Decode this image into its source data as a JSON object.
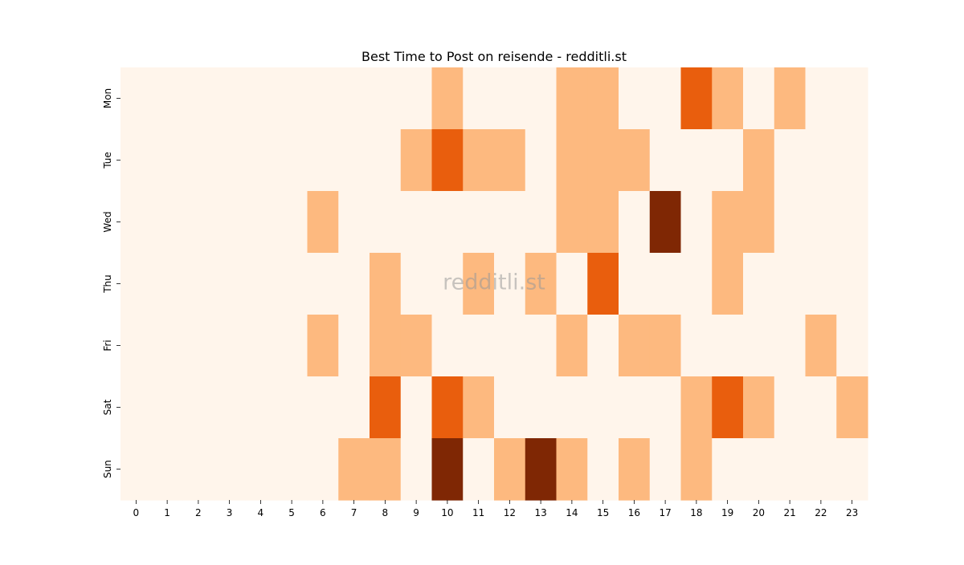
{
  "chart_data": {
    "type": "heatmap",
    "title": "Best Time to Post on reisende - redditli.st",
    "watermark": "redditli.st",
    "xlabel": "",
    "ylabel": "",
    "x_labels": [
      "0",
      "1",
      "2",
      "3",
      "4",
      "5",
      "6",
      "7",
      "8",
      "9",
      "10",
      "11",
      "12",
      "13",
      "14",
      "15",
      "16",
      "17",
      "18",
      "19",
      "20",
      "21",
      "22",
      "23"
    ],
    "y_labels": [
      "Mon",
      "Tue",
      "Wed",
      "Thu",
      "Fri",
      "Sat",
      "Sun"
    ],
    "values": [
      [
        0,
        0,
        0,
        0,
        0,
        0,
        0,
        0,
        0,
        0,
        1,
        0,
        0,
        0,
        1,
        1,
        0,
        0,
        2,
        1,
        0,
        1,
        0,
        0
      ],
      [
        0,
        0,
        0,
        0,
        0,
        0,
        0,
        0,
        0,
        1,
        2,
        1,
        1,
        0,
        1,
        1,
        1,
        0,
        0,
        0,
        1,
        0,
        0,
        0
      ],
      [
        0,
        0,
        0,
        0,
        0,
        0,
        1,
        0,
        0,
        0,
        0,
        0,
        0,
        0,
        1,
        1,
        0,
        3,
        0,
        1,
        1,
        0,
        0,
        0
      ],
      [
        0,
        0,
        0,
        0,
        0,
        0,
        0,
        0,
        1,
        0,
        0,
        1,
        0,
        1,
        0,
        2,
        0,
        0,
        0,
        1,
        0,
        0,
        0,
        0
      ],
      [
        0,
        0,
        0,
        0,
        0,
        0,
        1,
        0,
        1,
        1,
        0,
        0,
        0,
        0,
        1,
        0,
        1,
        1,
        0,
        0,
        0,
        0,
        1,
        0
      ],
      [
        0,
        0,
        0,
        0,
        0,
        0,
        0,
        0,
        2,
        0,
        2,
        1,
        0,
        0,
        0,
        0,
        0,
        0,
        1,
        2,
        1,
        0,
        0,
        1
      ],
      [
        0,
        0,
        0,
        0,
        0,
        0,
        0,
        1,
        1,
        0,
        3,
        0,
        1,
        3,
        1,
        0,
        1,
        0,
        1,
        0,
        0,
        0,
        0,
        0
      ]
    ],
    "colormap": [
      "#fff5eb",
      "#fdb97f",
      "#e95e0d",
      "#7f2704"
    ],
    "colorbar": false,
    "grid": false
  }
}
